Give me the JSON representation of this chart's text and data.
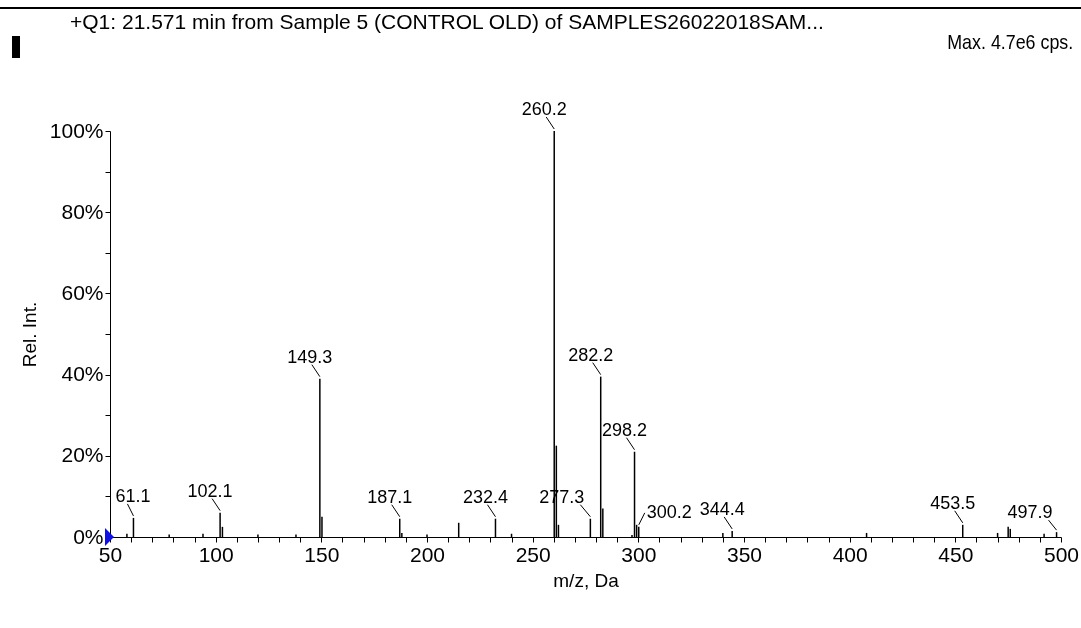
{
  "chart_data": {
    "type": "bar",
    "title": "+Q1: 21.571 min from Sample 5 (CONTROL OLD) of SAMPLES26022018SAM...",
    "xlabel": "m/z, Da",
    "ylabel": "Rel. Int.",
    "annotations": [
      "Max. 4.7e6 cps.",
      {
        "text": "61.1",
        "x": 61.1,
        "y": 4.7
      },
      {
        "text": "102.1",
        "x": 102.1,
        "y": 6
      },
      {
        "text": "149.3",
        "x": 149.3,
        "y": 39
      },
      {
        "text": "187.1",
        "x": 187.1,
        "y": 4.5
      },
      {
        "text": "232.4",
        "x": 232.4,
        "y": 4.5
      },
      {
        "text": "260.2",
        "x": 260.2,
        "y": 100
      },
      {
        "text": "277.3",
        "x": 277.3,
        "y": 4.5
      },
      {
        "text": "282.2",
        "x": 282.2,
        "y": 39.5
      },
      {
        "text": "298.2",
        "x": 298.2,
        "y": 21
      },
      {
        "text": "300.2",
        "x": 300.2,
        "y": 2.5
      },
      {
        "text": "344.4",
        "x": 344.4,
        "y": 1.5
      },
      {
        "text": "453.5",
        "x": 453.5,
        "y": 3
      },
      {
        "text": "497.9",
        "x": 497.9,
        "y": 1.2
      }
    ],
    "x": [
      58,
      61.1,
      78,
      94,
      102.1,
      103.2,
      120,
      138,
      149.3,
      150.3,
      187.1,
      188.1,
      200,
      215,
      232.4,
      240,
      260.2,
      261.2,
      262.2,
      277.3,
      282.2,
      283.2,
      297,
      298.2,
      299.2,
      300.2,
      340,
      344.4,
      408,
      453.5,
      470,
      475,
      476,
      492,
      497.9
    ],
    "series": [
      {
        "color": "#000000",
        "values": [
          0.8,
          4.7,
          0.6,
          0.8,
          6,
          2.5,
          0.6,
          0.6,
          39,
          5,
          4.5,
          1,
          0.6,
          3.5,
          4.5,
          0.8,
          100,
          22.5,
          3,
          4.5,
          39.5,
          7,
          0.5,
          21,
          3,
          2.5,
          1,
          1.5,
          1,
          3,
          1,
          2.5,
          2,
          0.8,
          1.2
        ]
      }
    ],
    "xlim": [
      50,
      500
    ],
    "xticks": [
      50,
      {
        "value": 60,
        "label": null
      },
      {
        "value": 70,
        "label": null
      },
      {
        "value": 80,
        "label": null
      },
      {
        "value": 90,
        "label": null
      },
      100,
      {
        "value": 110,
        "label": null
      },
      {
        "value": 120,
        "label": null
      },
      {
        "value": 130,
        "label": null
      },
      {
        "value": 140,
        "label": null
      },
      150,
      {
        "value": 160,
        "label": null
      },
      {
        "value": 170,
        "label": null
      },
      {
        "value": 180,
        "label": null
      },
      {
        "value": 190,
        "label": null
      },
      200,
      {
        "value": 210,
        "label": null
      },
      {
        "value": 220,
        "label": null
      },
      {
        "value": 230,
        "label": null
      },
      {
        "value": 240,
        "label": null
      },
      250,
      {
        "value": 260,
        "label": null
      },
      {
        "value": 270,
        "label": null
      },
      {
        "value": 280,
        "label": null
      },
      {
        "value": 290,
        "label": null
      },
      300,
      {
        "value": 310,
        "label": null
      },
      {
        "value": 320,
        "label": null
      },
      {
        "value": 330,
        "label": null
      },
      {
        "value": 340,
        "label": null
      },
      350,
      {
        "value": 360,
        "label": null
      },
      {
        "value": 370,
        "label": null
      },
      {
        "value": 380,
        "label": null
      },
      {
        "value": 390,
        "label": null
      },
      400,
      {
        "value": 410,
        "label": null
      },
      {
        "value": 420,
        "label": null
      },
      {
        "value": 430,
        "label": null
      },
      {
        "value": 440,
        "label": null
      },
      450,
      {
        "value": 460,
        "label": null
      },
      {
        "value": 470,
        "label": null
      },
      {
        "value": 480,
        "label": null
      },
      {
        "value": 490,
        "label": null
      },
      500
    ],
    "ylim": [
      0,
      100
    ],
    "yticks": [
      {
        "value": 0,
        "label": "0%"
      },
      {
        "value": 10,
        "label": null
      },
      {
        "value": 20,
        "label": "20%"
      },
      {
        "value": 30,
        "label": null
      },
      {
        "value": 40,
        "label": "40%"
      },
      {
        "value": 50,
        "label": null
      },
      {
        "value": 60,
        "label": "60%"
      },
      {
        "value": 70,
        "label": null
      },
      {
        "value": 80,
        "label": "80%"
      },
      {
        "value": 90,
        "label": null
      },
      {
        "value": 100,
        "label": "100%"
      }
    ]
  }
}
